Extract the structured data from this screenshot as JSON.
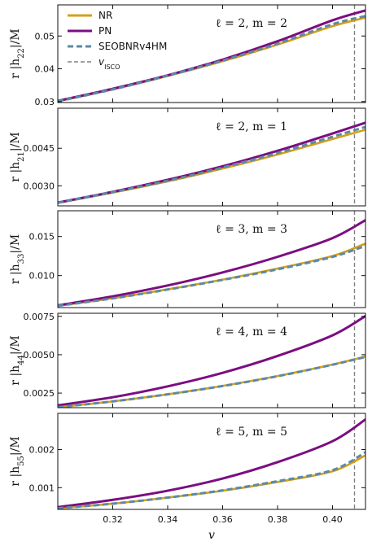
{
  "chart_data": {
    "type": "line",
    "xlabel": "v",
    "xlim": [
      0.3,
      0.412
    ],
    "xticks": [
      0.32,
      0.34,
      0.36,
      0.38,
      0.4
    ],
    "xtick_labels": [
      "0.32",
      "0.34",
      "0.36",
      "0.38",
      "0.40"
    ],
    "v_isco": 0.408,
    "colors": {
      "NR": "#d4a017",
      "PN": "#7b0e80",
      "SEOBNRv4HM": "#5b8aa8",
      "vISCO": "#808080"
    },
    "legend": {
      "location": "top-left of first panel",
      "entries": [
        {
          "name": "NR",
          "style": "solid"
        },
        {
          "name": "PN",
          "style": "solid"
        },
        {
          "name": "SEOBNRv4HM",
          "style": "dashed"
        },
        {
          "name": "v_ISCO",
          "style": "dashed",
          "sub": "ISCO"
        }
      ]
    },
    "panels": [
      {
        "annotation": "ℓ = 2, m = 2",
        "ylabel_main": "r |h",
        "ylabel_sub": "22",
        "ylabel_tail": "|/M",
        "ylim": [
          0.0297,
          0.0595
        ],
        "yticks": [
          0.03,
          0.04,
          0.05
        ],
        "ytick_labels": [
          "0.03",
          "0.04",
          "0.05"
        ],
        "x": [
          0.3,
          0.32,
          0.34,
          0.36,
          0.38,
          0.4,
          0.412
        ],
        "series": [
          {
            "name": "NR",
            "values": [
              0.0301,
              0.0337,
              0.0378,
              0.0423,
              0.0474,
              0.053,
              0.0556
            ]
          },
          {
            "name": "PN",
            "values": [
              0.0302,
              0.0339,
              0.038,
              0.0428,
              0.0484,
              0.0548,
              0.0578
            ]
          },
          {
            "name": "SEOBNRv4HM",
            "values": [
              0.0301,
              0.0337,
              0.0379,
              0.0425,
              0.0477,
              0.0536,
              0.0561
            ]
          }
        ]
      },
      {
        "annotation": "ℓ = 2, m = 1",
        "ylabel_main": "r |h",
        "ylabel_sub": "21",
        "ylabel_tail": "|/M",
        "ylim": [
          0.0022,
          0.0061
        ],
        "yticks": [
          0.003,
          0.0045
        ],
        "ytick_labels": [
          "0.0030",
          "0.0045"
        ],
        "x": [
          0.3,
          0.32,
          0.34,
          0.36,
          0.38,
          0.4,
          0.412
        ],
        "series": [
          {
            "name": "NR",
            "values": [
              0.00232,
              0.00273,
              0.00318,
              0.00369,
              0.00425,
              0.00487,
              0.00524
            ]
          },
          {
            "name": "PN",
            "values": [
              0.00233,
              0.00276,
              0.00324,
              0.00378,
              0.0044,
              0.00509,
              0.00552
            ]
          },
          {
            "name": "SEOBNRv4HM",
            "values": [
              0.00232,
              0.00275,
              0.0032,
              0.00373,
              0.00431,
              0.00496,
              0.00535
            ]
          }
        ]
      },
      {
        "annotation": "ℓ = 3, m = 3",
        "ylabel_main": "r |h",
        "ylabel_sub": "33",
        "ylabel_tail": "|/M",
        "ylim": [
          0.0059,
          0.0183
        ],
        "yticks": [
          0.01,
          0.015
        ],
        "ytick_labels": [
          "0.010",
          "0.015"
        ],
        "x": [
          0.3,
          0.32,
          0.34,
          0.36,
          0.38,
          0.4,
          0.412
        ],
        "series": [
          {
            "name": "NR",
            "values": [
              0.00612,
              0.0071,
              0.00824,
              0.00948,
              0.0109,
              0.0125,
              0.0141
            ]
          },
          {
            "name": "PN",
            "values": [
              0.00618,
              0.00734,
              0.00873,
              0.0104,
              0.0124,
              0.0148,
              0.0171
            ]
          },
          {
            "name": "SEOBNRv4HM",
            "values": [
              0.00612,
              0.00708,
              0.00821,
              0.00945,
              0.0108,
              0.0124,
              0.0138
            ]
          }
        ]
      },
      {
        "annotation": "ℓ = 4, m = 4",
        "ylabel_main": "r |h",
        "ylabel_sub": "44",
        "ylabel_tail": "|/M",
        "ylim": [
          0.00155,
          0.0077
        ],
        "yticks": [
          0.0025,
          0.005,
          0.0075
        ],
        "ytick_labels": [
          "0.0025",
          "0.0050",
          "0.0075"
        ],
        "x": [
          0.3,
          0.32,
          0.34,
          0.36,
          0.38,
          0.4,
          0.412
        ],
        "series": [
          {
            "name": "NR",
            "values": [
              0.00158,
              0.00196,
              0.00242,
              0.00297,
              0.00361,
              0.00436,
              0.00488
            ]
          },
          {
            "name": "PN",
            "values": [
              0.0017,
              0.00223,
              0.00294,
              0.00382,
              0.00492,
              0.00626,
              0.00752
            ]
          },
          {
            "name": "SEOBNRv4HM",
            "values": [
              0.00158,
              0.00196,
              0.00242,
              0.00296,
              0.0036,
              0.00435,
              0.00486
            ]
          }
        ]
      },
      {
        "annotation": "ℓ = 5, m = 5",
        "ylabel_main": "r |h",
        "ylabel_sub": "55",
        "ylabel_tail": "|/M",
        "ylim": [
          0.00043,
          0.00295
        ],
        "yticks": [
          0.001,
          0.002
        ],
        "ytick_labels": [
          "0.001",
          "0.002"
        ],
        "x": [
          0.3,
          0.32,
          0.34,
          0.36,
          0.38,
          0.4,
          0.412
        ],
        "series": [
          {
            "name": "NR",
            "values": [
              0.00046,
              0.00058,
              0.00074,
              0.00092,
              0.00115,
              0.00143,
              0.00185
            ]
          },
          {
            "name": "PN",
            "values": [
              0.00049,
              0.00068,
              0.00092,
              0.00124,
              0.00167,
              0.00222,
              0.00279
            ]
          },
          {
            "name": "SEOBNRv4HM",
            "values": [
              0.00046,
              0.00058,
              0.00074,
              0.00093,
              0.00117,
              0.00146,
              0.00193
            ]
          }
        ]
      }
    ]
  }
}
